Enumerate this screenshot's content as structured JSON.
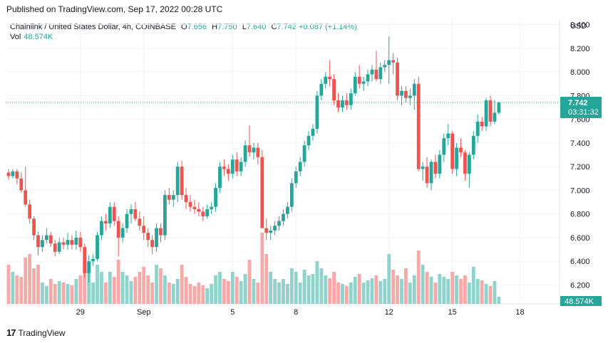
{
  "header": {
    "published": "Published on TradingView.com, Sep 17, 2022 00:28 UTC"
  },
  "legend": {
    "symbol": "Chainlink / United States Dollar, 4h, COINBASE",
    "o_label": "O",
    "o_value": "7.656",
    "h_label": "H",
    "h_value": "7.750",
    "l_label": "L",
    "l_value": "7.640",
    "c_label": "C",
    "c_value": "7.742",
    "change": "+0.087 (+1.14%)",
    "vol_label": "Vol",
    "vol_value": "48.574K"
  },
  "footer": {
    "logo_mark": "17",
    "brand": "TradingView"
  },
  "colors": {
    "up": "#26a69a",
    "down": "#ef5350",
    "vol_up": "#8fd3cc",
    "vol_down": "#f7a9a7",
    "grid": "#f0f3fa",
    "axis_text": "#131722",
    "price_line": "#26a69a"
  },
  "chart_data": {
    "type": "candlestick",
    "ylabel": "USD",
    "y_ticks": [
      "8.400",
      "8.200",
      "8.000",
      "7.800",
      "7.600",
      "7.400",
      "7.200",
      "7.000",
      "6.800",
      "6.600",
      "6.400",
      "6.200"
    ],
    "ylim": [
      6.04,
      8.44
    ],
    "x_ticks": [
      {
        "label": "29",
        "index": 17
      },
      {
        "label": "Sep",
        "index": 32
      },
      {
        "label": "5",
        "index": 53
      },
      {
        "label": "8",
        "index": 68
      },
      {
        "label": "12",
        "index": 90
      },
      {
        "label": "15",
        "index": 105
      },
      {
        "label": "18",
        "index": 121
      }
    ],
    "last_price": "7.742",
    "countdown": "03:31:32",
    "volume_last": "48.574K",
    "grid": true,
    "candles": [
      [
        7.15,
        7.18,
        7.09,
        7.12,
        55
      ],
      [
        7.12,
        7.18,
        7.1,
        7.16,
        45
      ],
      [
        7.16,
        7.18,
        7.05,
        7.1,
        40
      ],
      [
        7.1,
        7.15,
        6.98,
        7.0,
        38
      ],
      [
        7.0,
        7.2,
        6.86,
        6.88,
        65
      ],
      [
        6.88,
        6.92,
        6.72,
        6.76,
        70
      ],
      [
        6.76,
        6.78,
        6.58,
        6.62,
        50
      ],
      [
        6.62,
        6.65,
        6.45,
        6.52,
        55
      ],
      [
        6.52,
        6.62,
        6.48,
        6.58,
        30
      ],
      [
        6.58,
        6.68,
        6.55,
        6.62,
        25
      ],
      [
        6.62,
        6.65,
        6.52,
        6.55,
        35
      ],
      [
        6.55,
        6.58,
        6.44,
        6.48,
        28
      ],
      [
        6.48,
        6.6,
        6.46,
        6.56,
        32
      ],
      [
        6.56,
        6.6,
        6.5,
        6.54,
        30
      ],
      [
        6.54,
        6.64,
        6.5,
        6.58,
        28
      ],
      [
        6.58,
        6.62,
        6.5,
        6.54,
        26
      ],
      [
        6.54,
        6.66,
        6.5,
        6.6,
        35
      ],
      [
        6.6,
        6.65,
        6.48,
        6.52,
        40
      ],
      [
        6.52,
        6.55,
        6.26,
        6.3,
        60
      ],
      [
        6.3,
        6.45,
        6.22,
        6.4,
        45
      ],
      [
        6.4,
        6.46,
        6.36,
        6.42,
        30
      ],
      [
        6.42,
        6.65,
        6.4,
        6.62,
        55
      ],
      [
        6.62,
        6.78,
        6.58,
        6.74,
        45
      ],
      [
        6.74,
        6.8,
        6.66,
        6.72,
        30
      ],
      [
        6.72,
        6.9,
        6.68,
        6.86,
        45
      ],
      [
        6.86,
        6.9,
        6.7,
        6.74,
        38
      ],
      [
        6.74,
        6.78,
        6.44,
        6.6,
        62
      ],
      [
        6.6,
        6.72,
        6.56,
        6.68,
        45
      ],
      [
        6.68,
        6.84,
        6.64,
        6.8,
        40
      ],
      [
        6.8,
        6.88,
        6.72,
        6.84,
        32
      ],
      [
        6.84,
        6.9,
        6.74,
        6.76,
        38
      ],
      [
        6.76,
        6.82,
        6.66,
        6.7,
        45
      ],
      [
        6.7,
        6.78,
        6.58,
        6.64,
        52
      ],
      [
        6.64,
        6.68,
        6.52,
        6.58,
        40
      ],
      [
        6.58,
        6.62,
        6.46,
        6.52,
        30
      ],
      [
        6.52,
        6.72,
        6.48,
        6.68,
        55
      ],
      [
        6.68,
        6.72,
        6.56,
        6.62,
        50
      ],
      [
        6.62,
        7.0,
        6.58,
        6.96,
        40
      ],
      [
        6.96,
        7.02,
        6.88,
        6.92,
        30
      ],
      [
        6.92,
        7.0,
        6.86,
        6.96,
        28
      ],
      [
        6.96,
        7.24,
        6.9,
        7.2,
        35
      ],
      [
        7.2,
        7.25,
        6.92,
        6.96,
        55
      ],
      [
        6.96,
        7.02,
        6.84,
        6.9,
        38
      ],
      [
        6.9,
        6.96,
        6.82,
        6.86,
        28
      ],
      [
        6.86,
        6.92,
        6.8,
        6.84,
        25
      ],
      [
        6.84,
        6.9,
        6.78,
        6.82,
        30
      ],
      [
        6.82,
        6.86,
        6.74,
        6.78,
        26
      ],
      [
        6.78,
        6.88,
        6.76,
        6.84,
        22
      ],
      [
        6.84,
        6.9,
        6.8,
        6.86,
        28
      ],
      [
        6.86,
        7.06,
        6.82,
        7.02,
        40
      ],
      [
        7.02,
        7.24,
        6.98,
        7.2,
        45
      ],
      [
        7.2,
        7.26,
        7.12,
        7.18,
        35
      ],
      [
        7.18,
        7.22,
        7.08,
        7.14,
        32
      ],
      [
        7.14,
        7.3,
        7.1,
        7.26,
        45
      ],
      [
        7.26,
        7.32,
        7.12,
        7.16,
        38
      ],
      [
        7.16,
        7.28,
        7.12,
        7.24,
        32
      ],
      [
        7.24,
        7.42,
        7.2,
        7.38,
        42
      ],
      [
        7.38,
        7.55,
        7.28,
        7.32,
        62
      ],
      [
        7.32,
        7.4,
        7.26,
        7.36,
        35
      ],
      [
        7.36,
        7.4,
        7.22,
        7.28,
        30
      ],
      [
        7.28,
        7.34,
        6.7,
        6.68,
        100
      ],
      [
        6.68,
        6.76,
        6.58,
        6.64,
        70
      ],
      [
        6.64,
        6.7,
        6.58,
        6.66,
        45
      ],
      [
        6.66,
        6.74,
        6.62,
        6.7,
        35
      ],
      [
        6.7,
        6.78,
        6.66,
        6.74,
        30
      ],
      [
        6.74,
        6.84,
        6.7,
        6.8,
        35
      ],
      [
        6.8,
        6.9,
        6.76,
        6.86,
        28
      ],
      [
        6.86,
        7.1,
        6.82,
        7.06,
        50
      ],
      [
        7.06,
        7.2,
        7.02,
        7.16,
        45
      ],
      [
        7.16,
        7.28,
        7.12,
        7.24,
        30
      ],
      [
        7.24,
        7.42,
        7.2,
        7.38,
        48
      ],
      [
        7.38,
        7.5,
        7.34,
        7.46,
        40
      ],
      [
        7.46,
        7.56,
        7.42,
        7.52,
        42
      ],
      [
        7.52,
        7.84,
        7.48,
        7.8,
        60
      ],
      [
        7.8,
        7.94,
        7.76,
        7.9,
        50
      ],
      [
        7.9,
        8.0,
        7.86,
        7.96,
        40
      ],
      [
        7.96,
        8.1,
        7.88,
        7.94,
        36
      ],
      [
        7.94,
        7.98,
        7.72,
        7.76,
        45
      ],
      [
        7.76,
        7.82,
        7.66,
        7.7,
        30
      ],
      [
        7.7,
        7.8,
        7.66,
        7.76,
        28
      ],
      [
        7.76,
        7.82,
        7.68,
        7.72,
        25
      ],
      [
        7.72,
        7.86,
        7.68,
        7.82,
        30
      ],
      [
        7.82,
        8.0,
        7.8,
        7.96,
        38
      ],
      [
        7.96,
        8.06,
        7.86,
        7.9,
        42
      ],
      [
        7.9,
        7.96,
        7.84,
        7.92,
        30
      ],
      [
        7.92,
        8.02,
        7.88,
        7.98,
        33
      ],
      [
        7.98,
        8.06,
        7.92,
        8.02,
        36
      ],
      [
        8.02,
        8.18,
        7.92,
        7.94,
        40
      ],
      [
        7.94,
        8.08,
        7.9,
        8.04,
        32
      ],
      [
        8.04,
        8.1,
        8.0,
        8.06,
        35
      ],
      [
        8.06,
        8.3,
        7.9,
        8.1,
        70
      ],
      [
        8.1,
        8.16,
        7.98,
        8.08,
        48
      ],
      [
        8.08,
        8.12,
        7.76,
        7.8,
        40
      ],
      [
        7.8,
        7.88,
        7.72,
        7.84,
        35
      ],
      [
        7.84,
        7.88,
        7.74,
        7.78,
        50
      ],
      [
        7.78,
        7.86,
        7.72,
        7.8,
        30
      ],
      [
        7.8,
        7.94,
        7.68,
        7.9,
        40
      ],
      [
        7.9,
        7.96,
        7.16,
        7.18,
        75
      ],
      [
        7.18,
        7.24,
        7.08,
        7.2,
        55
      ],
      [
        7.2,
        7.28,
        7.02,
        7.06,
        45
      ],
      [
        7.06,
        7.26,
        7.0,
        7.24,
        38
      ],
      [
        7.24,
        7.3,
        7.1,
        7.14,
        30
      ],
      [
        7.14,
        7.34,
        7.1,
        7.3,
        42
      ],
      [
        7.3,
        7.48,
        7.24,
        7.44,
        38
      ],
      [
        7.44,
        7.56,
        7.38,
        7.48,
        35
      ],
      [
        7.48,
        7.5,
        7.14,
        7.18,
        45
      ],
      [
        7.18,
        7.4,
        7.12,
        7.36,
        40
      ],
      [
        7.36,
        7.44,
        7.28,
        7.32,
        35
      ],
      [
        7.32,
        7.34,
        7.08,
        7.14,
        40
      ],
      [
        7.14,
        7.32,
        7.02,
        7.3,
        30
      ],
      [
        7.3,
        7.5,
        7.26,
        7.46,
        52
      ],
      [
        7.46,
        7.64,
        7.4,
        7.58,
        35
      ],
      [
        7.58,
        7.62,
        7.5,
        7.54,
        33
      ],
      [
        7.54,
        7.78,
        7.5,
        7.76,
        28
      ],
      [
        7.76,
        7.8,
        7.54,
        7.58,
        25
      ],
      [
        7.58,
        7.76,
        7.56,
        7.656,
        32
      ],
      [
        7.656,
        7.75,
        7.64,
        7.742,
        10
      ]
    ]
  }
}
